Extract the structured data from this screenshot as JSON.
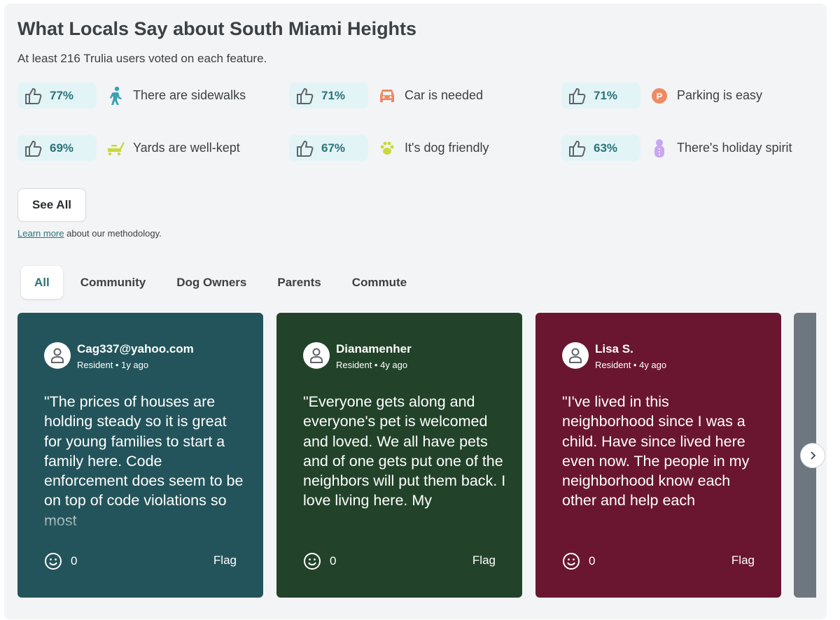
{
  "header": {
    "title": "What Locals Say about South Miami Heights",
    "subtitle": "At least 216 Trulia users voted on each feature."
  },
  "features": [
    {
      "percent": "77%",
      "label": "There are sidewalks",
      "icon": "walking-person-icon",
      "color": "#3aa3b3"
    },
    {
      "percent": "71%",
      "label": "Car is needed",
      "icon": "car-icon",
      "color": "#ef8a62"
    },
    {
      "percent": "71%",
      "label": "Parking is easy",
      "icon": "parking-icon",
      "color": "#ef8a62"
    },
    {
      "percent": "69%",
      "label": "Yards are well-kept",
      "icon": "lawnmower-icon",
      "color": "#c9d93a"
    },
    {
      "percent": "67%",
      "label": "It's dog friendly",
      "icon": "paw-icon",
      "color": "#c9d93a"
    },
    {
      "percent": "63%",
      "label": "There's holiday spirit",
      "icon": "snowman-icon",
      "color": "#c7a6f2"
    }
  ],
  "see_all": "See All",
  "methodology": {
    "link": "Learn more",
    "text": " about our methodology."
  },
  "tabs": [
    "All",
    "Community",
    "Dog Owners",
    "Parents",
    "Commute"
  ],
  "reviews": [
    {
      "name": "Cag337@yahoo.com",
      "meta": "Resident • 1y ago",
      "quote": "\"The prices of houses are holding steady so it is great for young families to start a family here. Code enforcement does seem to be on top of code violations so most",
      "reactions": "0",
      "flag": "Flag",
      "color": "#23545b"
    },
    {
      "name": "Dianamenher",
      "meta": "Resident • 4y ago",
      "quote": "\"Everyone gets along and everyone's pet is welcomed and loved. We all have pets and of one gets put one of the neighbors will put them back. I love living here. My",
      "reactions": "0",
      "flag": "Flag",
      "color": "#22432a"
    },
    {
      "name": "Lisa S.",
      "meta": "Resident • 4y ago",
      "quote": "\"I've lived in this neighborhood since I was a child. Have since lived here even now. The people in my neighborhood know each other and help each",
      "reactions": "0",
      "flag": "Flag",
      "color": "#6a1631"
    }
  ],
  "colors": {
    "accent": "#2a7479",
    "pill_bg": "#e3f4f7",
    "partial_card": "#6c7780"
  }
}
